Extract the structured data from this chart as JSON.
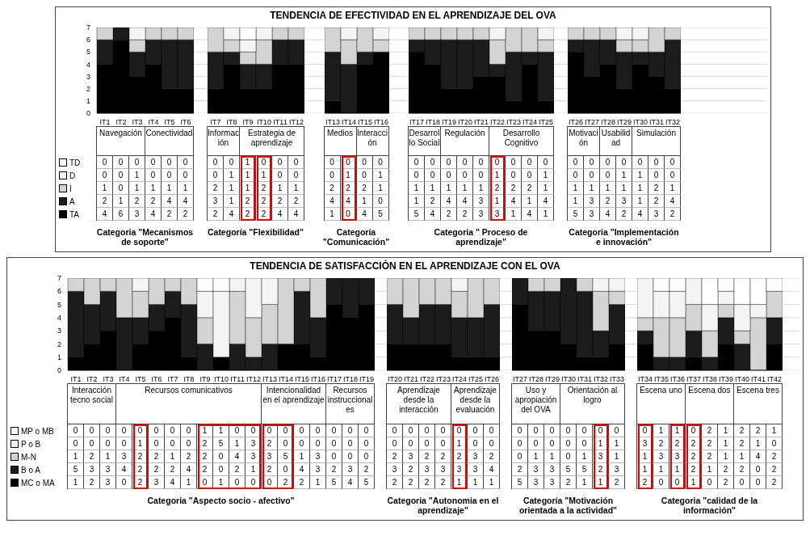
{
  "chart_data": [
    {
      "type": "bar",
      "stacked": true,
      "title": "TENDENCIA DE EFECTIVIDAD EN EL APRENDIZAJE DEL OVA",
      "categories": [
        "IT1",
        "IT2",
        "IT3",
        "IT4",
        "IT5",
        "IT6",
        "IT7",
        "IT8",
        "IT9",
        "IT10",
        "IT11",
        "IT12",
        "IT13",
        "IT14",
        "IT15",
        "IT16",
        "IT17",
        "IT18",
        "IT19",
        "IT20",
        "IT21",
        "IT22",
        "IT23",
        "IT24",
        "IT25",
        "IT26",
        "IT27",
        "IT28",
        "IT29",
        "IT30",
        "IT31",
        "IT32"
      ],
      "ylim": [
        0,
        7
      ],
      "yticks": [
        0,
        1,
        2,
        3,
        4,
        5,
        6,
        7
      ],
      "grid": "y",
      "legend": "left",
      "data_labels": true,
      "series": [
        {
          "name": "TA",
          "color": "#000000",
          "values": [
            4,
            6,
            3,
            4,
            2,
            2,
            2,
            4,
            2,
            2,
            4,
            4,
            1,
            0,
            4,
            5,
            5,
            4,
            2,
            2,
            3,
            3,
            1,
            4,
            1,
            5,
            3,
            4,
            2,
            4,
            3,
            2
          ]
        },
        {
          "name": "A",
          "color": "#1c1c1c",
          "values": [
            2,
            1,
            2,
            2,
            4,
            4,
            3,
            1,
            2,
            2,
            2,
            2,
            4,
            4,
            1,
            0,
            1,
            2,
            4,
            4,
            3,
            1,
            4,
            1,
            4,
            1,
            3,
            2,
            3,
            1,
            2,
            4
          ]
        },
        {
          "name": "I",
          "color": "#d4d4d4",
          "values": [
            1,
            0,
            1,
            1,
            1,
            1,
            2,
            1,
            1,
            2,
            1,
            1,
            2,
            2,
            2,
            1,
            1,
            1,
            1,
            1,
            1,
            2,
            2,
            2,
            1,
            1,
            1,
            1,
            1,
            1,
            2,
            1
          ]
        },
        {
          "name": "D",
          "color": "#f4f4f4",
          "values": [
            0,
            0,
            1,
            0,
            0,
            0,
            0,
            1,
            1,
            1,
            0,
            0,
            0,
            1,
            0,
            1,
            0,
            0,
            0,
            0,
            0,
            1,
            0,
            0,
            1,
            0,
            0,
            0,
            1,
            1,
            0,
            0
          ]
        },
        {
          "name": "TD",
          "color": "#ffffff",
          "values": [
            0,
            0,
            0,
            0,
            0,
            0,
            0,
            0,
            1,
            0,
            0,
            0,
            0,
            0,
            0,
            0,
            0,
            0,
            0,
            0,
            0,
            0,
            0,
            0,
            0,
            0,
            0,
            0,
            0,
            0,
            0,
            0
          ]
        }
      ],
      "annotations": [
        "Navegación",
        "Conectividad",
        "Categoria \"Mecanismos de soporte\"",
        "Información",
        "Estrategia de aprendizaje",
        "Categoría \"Flexibilidad\"",
        "Medios",
        "Interacción",
        "Categoría \"Comunicación\"",
        "Desarrollo Social",
        "Regulación",
        "Desarrollo Cognitivo",
        "Categoria \" Proceso de aprendizaje\"",
        "Motivación",
        "Usabilidad",
        "Simulación",
        "Categoria \"Implementación e innovación\""
      ]
    },
    {
      "type": "bar",
      "stacked": true,
      "title": "TENDENCIA DE SATISFACCIÓN EN EL APRENDIZAJE CON EL OVA",
      "categories": [
        "IT1",
        "IT2",
        "IT3",
        "IT4",
        "IT5",
        "IT6",
        "IT7",
        "IT8",
        "IT9",
        "IT10",
        "IT11",
        "IT12",
        "IT13",
        "IT14",
        "IT15",
        "IT16",
        "IT17",
        "IT18",
        "IT19",
        "IT20",
        "IT21",
        "IT22",
        "IT23",
        "IT24",
        "IT25",
        "IT26",
        "IT27",
        "IT28",
        "IT29",
        "IT30",
        "IT31",
        "IT32",
        "IT33",
        "IT34",
        "IT35",
        "IT36",
        "IT37",
        "IT38",
        "IT39",
        "IT40",
        "IT41",
        "IT42"
      ],
      "ylim": [
        0,
        7
      ],
      "yticks": [
        0,
        1,
        2,
        3,
        4,
        5,
        6,
        7
      ],
      "grid": "y",
      "legend": "left",
      "data_labels": true,
      "series": [
        {
          "name": "MC o MA",
          "color": "#000000",
          "values": [
            1,
            2,
            3,
            0,
            2,
            3,
            4,
            1,
            0,
            1,
            0,
            0,
            0,
            2,
            2,
            1,
            5,
            4,
            5,
            2,
            2,
            2,
            2,
            1,
            1,
            1,
            5,
            3,
            3,
            2,
            1,
            1,
            2,
            2,
            0,
            0,
            1,
            0,
            2,
            0,
            0,
            2
          ]
        },
        {
          "name": "B o A",
          "color": "#1c1c1c",
          "values": [
            5,
            3,
            3,
            4,
            2,
            2,
            2,
            4,
            2,
            0,
            2,
            1,
            2,
            0,
            4,
            3,
            2,
            3,
            2,
            3,
            2,
            3,
            3,
            3,
            3,
            4,
            2,
            3,
            3,
            5,
            5,
            2,
            3,
            1,
            1,
            1,
            2,
            1,
            2,
            2,
            0,
            2
          ]
        },
        {
          "name": "M-N",
          "color": "#d4d4d4",
          "values": [
            1,
            2,
            1,
            3,
            2,
            2,
            1,
            2,
            2,
            0,
            4,
            3,
            3,
            5,
            1,
            3,
            0,
            0,
            0,
            2,
            3,
            2,
            2,
            2,
            3,
            2,
            0,
            1,
            1,
            0,
            1,
            3,
            1,
            1,
            3,
            3,
            2,
            2,
            1,
            1,
            4,
            2
          ]
        },
        {
          "name": "P o B",
          "color": "#f4f4f4",
          "values": [
            0,
            0,
            0,
            0,
            1,
            0,
            0,
            0,
            2,
            5,
            1,
            3,
            2,
            0,
            0,
            0,
            0,
            0,
            0,
            0,
            0,
            0,
            0,
            1,
            0,
            0,
            0,
            0,
            0,
            0,
            0,
            1,
            1,
            3,
            2,
            2,
            2,
            2,
            1,
            2,
            1,
            0
          ]
        },
        {
          "name": "MP o MB",
          "color": "#ffffff",
          "values": [
            0,
            0,
            0,
            0,
            0,
            0,
            0,
            0,
            1,
            1,
            0,
            0,
            0,
            0,
            0,
            0,
            0,
            0,
            0,
            0,
            0,
            0,
            0,
            0,
            0,
            0,
            0,
            0,
            0,
            0,
            0,
            0,
            0,
            0,
            1,
            1,
            0,
            2,
            1,
            2,
            2,
            1
          ]
        }
      ],
      "annotations": [
        "Interacción tecno social",
        "Recursos comunicativos",
        "Intencionalidad en el aprendizaje",
        "Recursos instruccionales",
        "Categoria \"Aspecto socio - afectivo\"",
        "Aprendizaje desde la interacción",
        "Aprendizaje desde la evaluación",
        "Categoria \"Autonomia en el aprendizaje\"",
        "Uso y apropiación del OVA",
        "Orientación al logro",
        "Categoría \"Motivación orientada a la actividad\"",
        "Escena uno",
        "Escena dos",
        "Escena tres",
        "Categoria \"calidad de la información\""
      ]
    }
  ]
}
